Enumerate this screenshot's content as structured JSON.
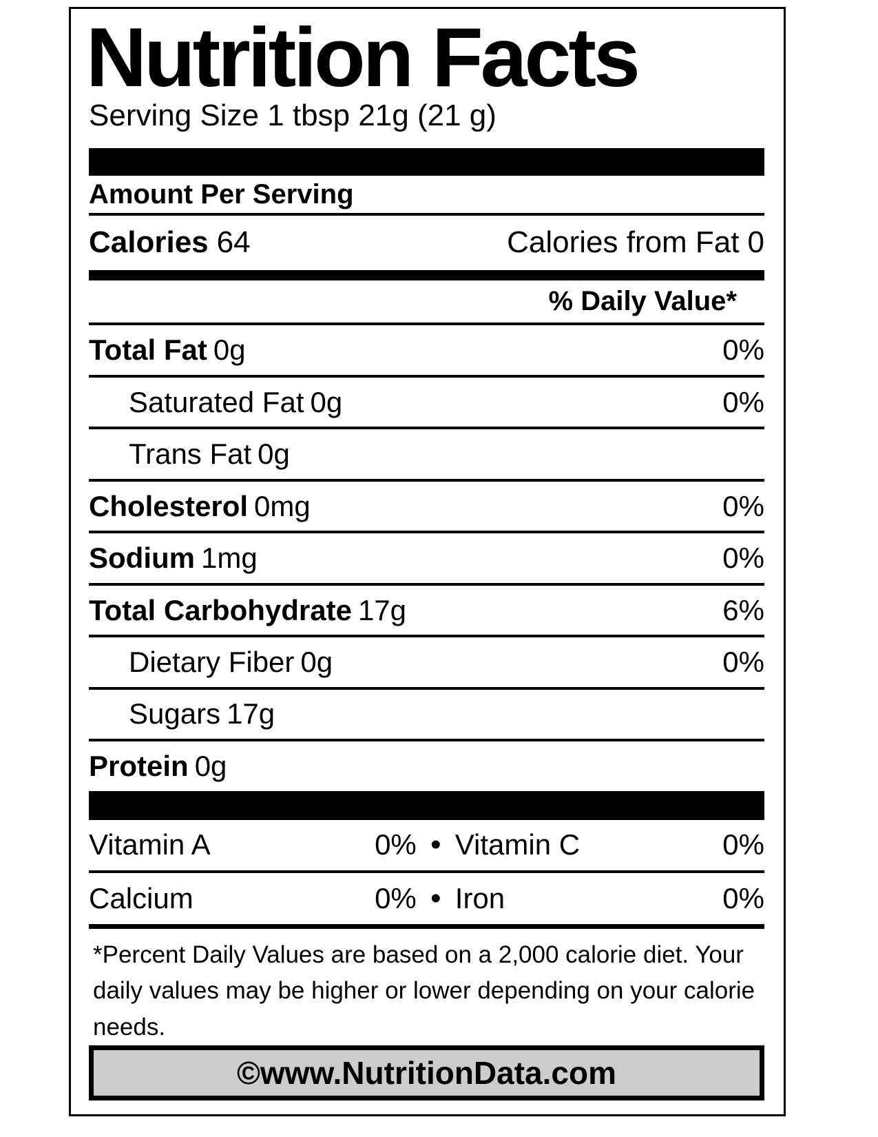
{
  "label": {
    "title": "Nutrition Facts",
    "serving_size": "Serving Size 1 tbsp 21g (21 g)",
    "amount_per_serving": "Amount Per Serving",
    "calories": {
      "label": "Calories",
      "value": "64",
      "from_fat_label": "Calories from Fat",
      "from_fat_value": "0"
    },
    "daily_value_header": "% Daily Value*",
    "nutrients": [
      {
        "label": "Total Fat",
        "amount": "0g",
        "dv": "0%"
      },
      {
        "label": "Saturated Fat",
        "amount": "0g",
        "dv": "0%"
      },
      {
        "label": "Trans Fat",
        "amount": "0g",
        "dv": ""
      },
      {
        "label": "Cholesterol",
        "amount": "0mg",
        "dv": "0%"
      },
      {
        "label": "Sodium",
        "amount": "1mg",
        "dv": "0%"
      },
      {
        "label": "Total Carbohydrate",
        "amount": "17g",
        "dv": "6%"
      },
      {
        "label": "Dietary Fiber",
        "amount": "0g",
        "dv": "0%"
      },
      {
        "label": "Sugars",
        "amount": "17g",
        "dv": ""
      },
      {
        "label": "Protein",
        "amount": "0g",
        "dv": ""
      }
    ],
    "bullet": "•",
    "micronutrients": [
      {
        "left_label": "Vitamin A",
        "left_value": "0%",
        "right_label": "Vitamin C",
        "right_value": "0%"
      },
      {
        "left_label": "Calcium",
        "left_value": "0%",
        "right_label": "Iron",
        "right_value": "0%"
      }
    ],
    "footnote": "*Percent Daily Values are based on a 2,000 calorie diet. Your daily values may be higher or lower depending on your calorie needs.",
    "footer": "©www.NutritionData.com",
    "colors": {
      "text": "#000000",
      "background": "#ffffff",
      "footer_background": "#cccccc"
    }
  }
}
